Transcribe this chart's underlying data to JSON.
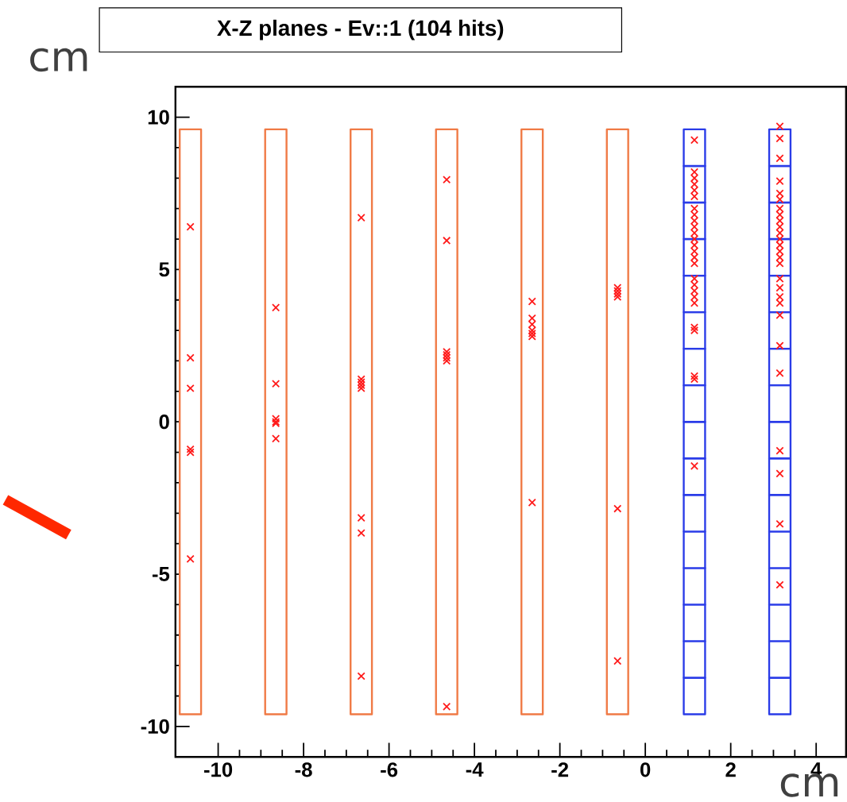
{
  "chart_data": {
    "type": "scatter",
    "title": "X-Z planes - Ev::1 (104 hits)",
    "xlabel": "cm",
    "ylabel": "cm",
    "xlim": [
      -11,
      4.7
    ],
    "ylim": [
      -11,
      11
    ],
    "xticks": [
      -10,
      -8,
      -6,
      -4,
      -2,
      0,
      2,
      4
    ],
    "yticks": [
      -10,
      -5,
      0,
      5,
      10
    ],
    "marker": "cross",
    "series": [
      {
        "type": "bar",
        "color": "#f07a45",
        "x": [
          -10.65,
          -8.65,
          -6.65,
          -4.65,
          -2.65,
          -0.65
        ],
        "base": [
          -9.6,
          -9.6,
          -9.6,
          -9.6,
          -9.6,
          -9.6
        ],
        "values": [
          19.2,
          19.2,
          19.2,
          19.2,
          19.2,
          19.2
        ]
      },
      {
        "type": "bar",
        "color": "#2a3ce8",
        "x": [
          1.15,
          3.15
        ],
        "base": [
          -9.6,
          -9.6
        ],
        "values": [
          1.2,
          1.2
        ]
      },
      {
        "type": "bar",
        "color": "#2a3ce8",
        "x": [
          1.15,
          3.15
        ],
        "base": [
          -8.4,
          -8.4
        ],
        "values": [
          1.2,
          1.2
        ]
      },
      {
        "type": "bar",
        "color": "#2a3ce8",
        "x": [
          1.15,
          3.15
        ],
        "base": [
          -7.2,
          -7.2
        ],
        "values": [
          1.2,
          1.2
        ]
      },
      {
        "type": "bar",
        "color": "#2a3ce8",
        "x": [
          1.15,
          3.15
        ],
        "base": [
          -6,
          -6
        ],
        "values": [
          1.2,
          1.2
        ]
      },
      {
        "type": "bar",
        "color": "#2a3ce8",
        "x": [
          1.15,
          3.15
        ],
        "base": [
          -4.8,
          -4.8
        ],
        "values": [
          1.2,
          1.2
        ]
      },
      {
        "type": "bar",
        "color": "#2a3ce8",
        "x": [
          1.15,
          3.15
        ],
        "base": [
          -3.6,
          -3.6
        ],
        "values": [
          1.2,
          1.2
        ]
      },
      {
        "type": "bar",
        "color": "#2a3ce8",
        "x": [
          1.15,
          3.15
        ],
        "base": [
          -2.4,
          -2.4
        ],
        "values": [
          1.2,
          1.2
        ]
      },
      {
        "type": "bar",
        "color": "#2a3ce8",
        "x": [
          1.15,
          3.15
        ],
        "base": [
          -1.2,
          -1.2
        ],
        "values": [
          1.2,
          1.2
        ]
      },
      {
        "type": "bar",
        "color": "#2a3ce8",
        "x": [
          1.15,
          3.15
        ],
        "base": [
          0,
          0
        ],
        "values": [
          1.2,
          1.2
        ]
      },
      {
        "type": "bar",
        "color": "#2a3ce8",
        "x": [
          1.15,
          3.15
        ],
        "base": [
          1.2,
          1.2
        ],
        "values": [
          1.2,
          1.2
        ]
      },
      {
        "type": "bar",
        "color": "#2a3ce8",
        "x": [
          1.15,
          3.15
        ],
        "base": [
          2.4,
          2.4
        ],
        "values": [
          1.2,
          1.2
        ]
      },
      {
        "type": "bar",
        "color": "#2a3ce8",
        "x": [
          1.15,
          3.15
        ],
        "base": [
          3.6,
          3.6
        ],
        "values": [
          1.2,
          1.2
        ]
      },
      {
        "type": "bar",
        "color": "#2a3ce8",
        "x": [
          1.15,
          3.15
        ],
        "base": [
          4.8,
          4.8
        ],
        "values": [
          1.2,
          1.2
        ]
      },
      {
        "type": "bar",
        "color": "#2a3ce8",
        "x": [
          1.15,
          3.15
        ],
        "base": [
          6,
          6
        ],
        "values": [
          1.2,
          1.2
        ]
      },
      {
        "type": "bar",
        "color": "#2a3ce8",
        "x": [
          1.15,
          3.15
        ],
        "base": [
          7.2,
          7.2
        ],
        "values": [
          1.2,
          1.2
        ]
      },
      {
        "type": "bar",
        "color": "#2a3ce8",
        "x": [
          1.15,
          3.15
        ],
        "base": [
          8.4,
          8.4
        ],
        "values": [
          1.2,
          1.2
        ]
      },
      {
        "color": "#ff1a1a",
        "x": [
          -10.65,
          -10.65,
          -10.65,
          -10.65,
          -10.65,
          -10.65,
          -8.65,
          -8.65,
          -8.65,
          -8.65,
          -8.65,
          -8.65,
          -6.65,
          -6.65,
          -6.65,
          -6.65,
          -6.65,
          -6.65,
          -6.65,
          -6.65,
          -4.65,
          -4.65,
          -4.65,
          -4.65,
          -4.65,
          -4.65,
          -4.65,
          -2.65,
          -2.65,
          -2.65,
          -2.65,
          -2.65,
          -2.65,
          -2.65,
          -0.65,
          -0.65,
          -0.65,
          -0.65,
          -0.65,
          -0.65,
          1.15,
          1.15,
          1.15,
          1.15,
          1.15,
          1.15,
          1.15,
          1.15,
          1.15,
          1.15,
          1.15,
          1.15,
          1.15,
          1.15,
          1.15,
          1.15,
          1.15,
          1.15,
          1.15,
          1.15,
          1.15,
          1.15,
          1.15,
          1.15,
          1.15,
          1.15,
          3.15,
          3.15,
          3.15,
          3.15,
          3.15,
          3.15,
          3.15,
          3.15,
          3.15,
          3.15,
          3.15,
          3.15,
          3.15,
          3.15,
          3.15,
          3.15,
          3.15,
          3.15,
          3.15,
          3.15,
          3.15,
          3.15,
          3.15,
          3.15,
          3.15,
          3.15,
          3.15
        ],
        "values": [
          6.4,
          2.1,
          1.1,
          -0.9,
          -1.0,
          -4.5,
          3.75,
          1.25,
          0.1,
          0,
          -0.05,
          -0.55,
          6.7,
          1.4,
          1.3,
          1.2,
          1.1,
          -3.15,
          -3.65,
          -8.35,
          7.95,
          5.95,
          2.3,
          2.2,
          2.1,
          2.0,
          -9.35,
          3.95,
          3.4,
          3.2,
          3.0,
          2.9,
          2.8,
          -2.65,
          4.4,
          4.3,
          4.2,
          4.1,
          -2.85,
          -7.85,
          9.25,
          8.2,
          8.0,
          7.8,
          7.6,
          7.4,
          7.0,
          6.8,
          6.6,
          6.4,
          6.2,
          6.0,
          5.8,
          5.6,
          5.4,
          5.2,
          4.7,
          4.5,
          4.3,
          4.1,
          3.9,
          3.1,
          3.0,
          1.5,
          1.4,
          -1.45,
          9.7,
          9.3,
          8.65,
          7.9,
          7.5,
          7.3,
          7.0,
          6.8,
          6.6,
          6.4,
          6.2,
          6.0,
          5.8,
          5.6,
          5.4,
          5.2,
          4.7,
          4.4,
          4.1,
          3.9,
          3.5,
          2.5,
          1.6,
          -0.95,
          -1.7,
          -3.35,
          -5.35
        ]
      }
    ]
  }
}
